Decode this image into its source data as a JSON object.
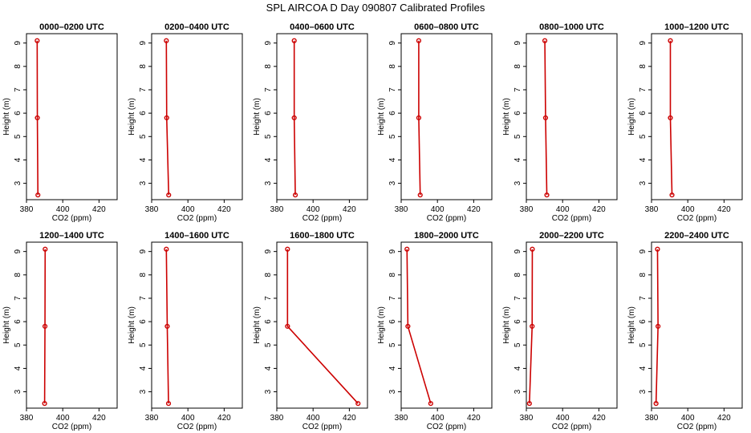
{
  "title": "SPL AIRCOA D  Day 090807  Calibrated Profiles",
  "chart_data": [
    {
      "type": "line",
      "title": "0000–0200 UTC",
      "xlabel": "CO2 (ppm)",
      "ylabel": "Height (m)",
      "xlim": [
        380,
        430
      ],
      "ylim": [
        2.3,
        9.4
      ],
      "xticks": [
        380,
        400,
        420
      ],
      "yticks": [
        3,
        4,
        5,
        6,
        7,
        8,
        9
      ],
      "series": [
        {
          "x": [
            385.9,
            386.0,
            386.3
          ],
          "y": [
            9.1,
            5.8,
            2.5
          ]
        }
      ]
    },
    {
      "type": "line",
      "title": "0200–0400 UTC",
      "xlabel": "CO2 (ppm)",
      "ylabel": "Height (m)",
      "xlim": [
        380,
        430
      ],
      "ylim": [
        2.3,
        9.4
      ],
      "xticks": [
        380,
        400,
        420
      ],
      "yticks": [
        3,
        4,
        5,
        6,
        7,
        8,
        9
      ],
      "series": [
        {
          "x": [
            388.1,
            388.3,
            389.4
          ],
          "y": [
            9.1,
            5.8,
            2.5
          ]
        }
      ]
    },
    {
      "type": "line",
      "title": "0400–0600 UTC",
      "xlabel": "CO2 (ppm)",
      "ylabel": "Height (m)",
      "xlim": [
        380,
        430
      ],
      "ylim": [
        2.3,
        9.4
      ],
      "xticks": [
        380,
        400,
        420
      ],
      "yticks": [
        3,
        4,
        5,
        6,
        7,
        8,
        9
      ],
      "series": [
        {
          "x": [
            389.6,
            389.6,
            390.2
          ],
          "y": [
            9.1,
            5.8,
            2.5
          ]
        }
      ]
    },
    {
      "type": "line",
      "title": "0600–0800 UTC",
      "xlabel": "CO2 (ppm)",
      "ylabel": "Height (m)",
      "xlim": [
        380,
        430
      ],
      "ylim": [
        2.3,
        9.4
      ],
      "xticks": [
        380,
        400,
        420
      ],
      "yticks": [
        3,
        4,
        5,
        6,
        7,
        8,
        9
      ],
      "series": [
        {
          "x": [
            389.7,
            389.7,
            390.5
          ],
          "y": [
            9.1,
            5.8,
            2.5
          ]
        }
      ]
    },
    {
      "type": "line",
      "title": "0800–1000 UTC",
      "xlabel": "CO2 (ppm)",
      "ylabel": "Height (m)",
      "xlim": [
        380,
        430
      ],
      "ylim": [
        2.3,
        9.4
      ],
      "xticks": [
        380,
        400,
        420
      ],
      "yticks": [
        3,
        4,
        5,
        6,
        7,
        8,
        9
      ],
      "series": [
        {
          "x": [
            390.2,
            390.6,
            391.3
          ],
          "y": [
            9.1,
            5.8,
            2.5
          ]
        }
      ]
    },
    {
      "type": "line",
      "title": "1000–1200 UTC",
      "xlabel": "CO2 (ppm)",
      "ylabel": "Height (m)",
      "xlim": [
        380,
        430
      ],
      "ylim": [
        2.3,
        9.4
      ],
      "xticks": [
        380,
        400,
        420
      ],
      "yticks": [
        3,
        4,
        5,
        6,
        7,
        8,
        9
      ],
      "series": [
        {
          "x": [
            390.4,
            390.4,
            391.3
          ],
          "y": [
            9.1,
            5.8,
            2.5
          ]
        }
      ]
    },
    {
      "type": "line",
      "title": "1200–1400 UTC",
      "xlabel": "CO2 (ppm)",
      "ylabel": "Height (m)",
      "xlim": [
        380,
        430
      ],
      "ylim": [
        2.3,
        9.4
      ],
      "xticks": [
        380,
        400,
        420
      ],
      "yticks": [
        3,
        4,
        5,
        6,
        7,
        8,
        9
      ],
      "series": [
        {
          "x": [
            390.3,
            390.2,
            390.0
          ],
          "y": [
            9.1,
            5.8,
            2.5
          ]
        }
      ]
    },
    {
      "type": "line",
      "title": "1400–1600 UTC",
      "xlabel": "CO2 (ppm)",
      "ylabel": "Height (m)",
      "xlim": [
        380,
        430
      ],
      "ylim": [
        2.3,
        9.4
      ],
      "xticks": [
        380,
        400,
        420
      ],
      "yticks": [
        3,
        4,
        5,
        6,
        7,
        8,
        9
      ],
      "series": [
        {
          "x": [
            388.1,
            388.6,
            389.3
          ],
          "y": [
            9.1,
            5.8,
            2.5
          ]
        }
      ]
    },
    {
      "type": "line",
      "title": "1600–1800 UTC",
      "xlabel": "CO2 (ppm)",
      "ylabel": "Height (m)",
      "xlim": [
        380,
        430
      ],
      "ylim": [
        2.3,
        9.4
      ],
      "xticks": [
        380,
        400,
        420
      ],
      "yticks": [
        3,
        4,
        5,
        6,
        7,
        8,
        9
      ],
      "series": [
        {
          "x": [
            385.9,
            385.9,
            424.8
          ],
          "y": [
            9.1,
            5.8,
            2.5
          ]
        }
      ]
    },
    {
      "type": "line",
      "title": "1800–2000 UTC",
      "xlabel": "CO2 (ppm)",
      "ylabel": "Height (m)",
      "xlim": [
        380,
        430
      ],
      "ylim": [
        2.3,
        9.4
      ],
      "xticks": [
        380,
        400,
        420
      ],
      "yticks": [
        3,
        4,
        5,
        6,
        7,
        8,
        9
      ],
      "series": [
        {
          "x": [
            383.2,
            383.7,
            396.3
          ],
          "y": [
            9.1,
            5.8,
            2.5
          ]
        }
      ]
    },
    {
      "type": "line",
      "title": "2000–2200 UTC",
      "xlabel": "CO2 (ppm)",
      "ylabel": "Height (m)",
      "xlim": [
        380,
        430
      ],
      "ylim": [
        2.3,
        9.4
      ],
      "xticks": [
        380,
        400,
        420
      ],
      "yticks": [
        3,
        4,
        5,
        6,
        7,
        8,
        9
      ],
      "series": [
        {
          "x": [
            383.3,
            383.2,
            381.7
          ],
          "y": [
            9.1,
            5.8,
            2.5
          ]
        }
      ]
    },
    {
      "type": "line",
      "title": "2200–2400 UTC",
      "xlabel": "CO2 (ppm)",
      "ylabel": "Height (m)",
      "xlim": [
        380,
        430
      ],
      "ylim": [
        2.3,
        9.4
      ],
      "xticks": [
        380,
        400,
        420
      ],
      "yticks": [
        3,
        4,
        5,
        6,
        7,
        8,
        9
      ],
      "series": [
        {
          "x": [
            383.3,
            383.6,
            382.5
          ],
          "y": [
            9.1,
            5.8,
            2.5
          ]
        }
      ]
    }
  ]
}
